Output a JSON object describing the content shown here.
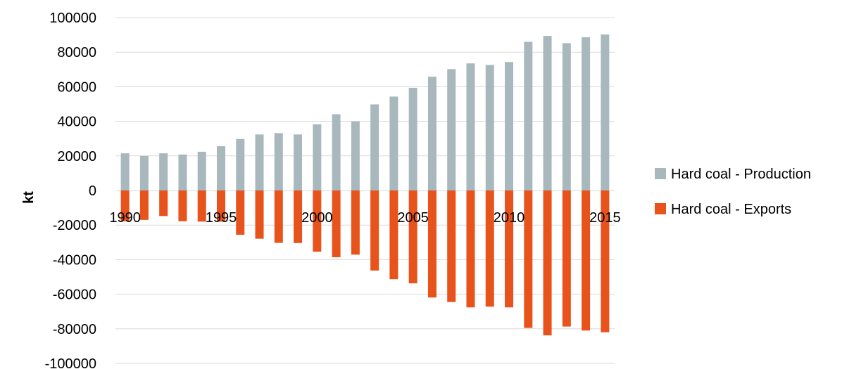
{
  "chart_data": {
    "type": "bar",
    "title": "",
    "xlabel": "",
    "ylabel": "kt",
    "ylim": [
      -100000,
      100000
    ],
    "ytick_step": 20000,
    "grid": true,
    "legend_position": "right",
    "x_tick_labels_shown": [
      "1990",
      "1995",
      "2000",
      "2005",
      "2010",
      "2015"
    ],
    "categories": [
      "1990",
      "1991",
      "1992",
      "1993",
      "1994",
      "1995",
      "1996",
      "1997",
      "1998",
      "1999",
      "2000",
      "2001",
      "2002",
      "2003",
      "2004",
      "2005",
      "2006",
      "2007",
      "2008",
      "2009",
      "2010",
      "2011",
      "2012",
      "2013",
      "2014",
      "2015"
    ],
    "series": [
      {
        "name": "Hard coal - Production",
        "color": "#a9b8bd",
        "values": [
          21500,
          20000,
          21500,
          20800,
          22400,
          25600,
          29800,
          32400,
          33200,
          32400,
          38300,
          44100,
          40000,
          49800,
          54300,
          59400,
          65800,
          70200,
          73500,
          72600,
          74300,
          86000,
          89400,
          85200,
          88600,
          90200
        ]
      },
      {
        "name": "Hard coal - Exports",
        "color": "#e8521b",
        "values": [
          -17800,
          -17000,
          -14800,
          -17800,
          -18000,
          -18000,
          -25600,
          -27900,
          -30300,
          -30400,
          -35400,
          -38600,
          -37100,
          -46300,
          -51300,
          -53700,
          -61900,
          -64500,
          -67600,
          -67200,
          -67600,
          -79500,
          -83800,
          -78700,
          -81000,
          -82000
        ]
      }
    ]
  }
}
